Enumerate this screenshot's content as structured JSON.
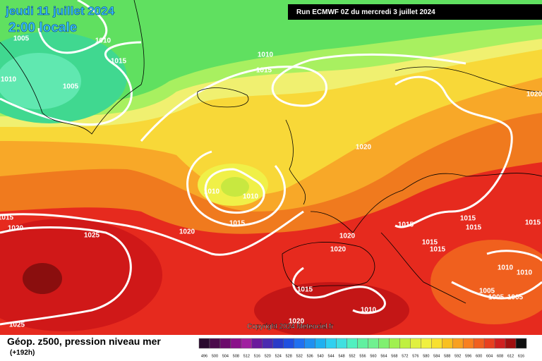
{
  "header": {
    "date": "jeudi 11 juillet 2024",
    "time": "2:00 locale",
    "run": "Run ECMWF 0Z du mercredi 3 juillet 2024"
  },
  "isobar_labels": [
    "1005",
    "1010",
    "1010",
    "1015",
    "1005",
    "1010",
    "1015",
    "1020",
    "1020",
    "1010",
    "1010",
    "1015",
    "1015",
    "1020",
    "1020",
    "1025",
    "1020",
    "1020",
    "1015",
    "1015",
    "1015",
    "1015",
    "1015",
    "1015",
    "1010",
    "1010",
    "1005",
    "1005",
    "1005",
    "1015",
    "1010",
    "1020",
    "1025"
  ],
  "footer": {
    "title": "Géop. z500, pression niveau mer",
    "range": "(+192h)",
    "copyright": "Copyright 2024 Meteociel.fr"
  },
  "colorbar": {
    "labels": [
      "496",
      "500",
      "504",
      "508",
      "512",
      "516",
      "520",
      "524",
      "528",
      "532",
      "536",
      "540",
      "544",
      "548",
      "552",
      "556",
      "560",
      "564",
      "568",
      "572",
      "576",
      "580",
      "584",
      "588",
      "592",
      "596",
      "600",
      "604",
      "608",
      "612",
      "616"
    ],
    "colors": [
      "#2a0a2e",
      "#4b0a4b",
      "#6c0a6c",
      "#8a108a",
      "#a020a0",
      "#6a1a9c",
      "#4a2ab0",
      "#2a3ac8",
      "#2050e0",
      "#2070f0",
      "#2090f0",
      "#20b0f0",
      "#30d0f0",
      "#40e0e0",
      "#50f0c0",
      "#60f0a0",
      "#70f090",
      "#80f070",
      "#a0f050",
      "#c0f040",
      "#e0f040",
      "#f0f040",
      "#f8e030",
      "#f8c020",
      "#f8a020",
      "#f88020",
      "#f06020",
      "#e84020",
      "#d02020",
      "#a01010",
      "#101010"
    ]
  }
}
